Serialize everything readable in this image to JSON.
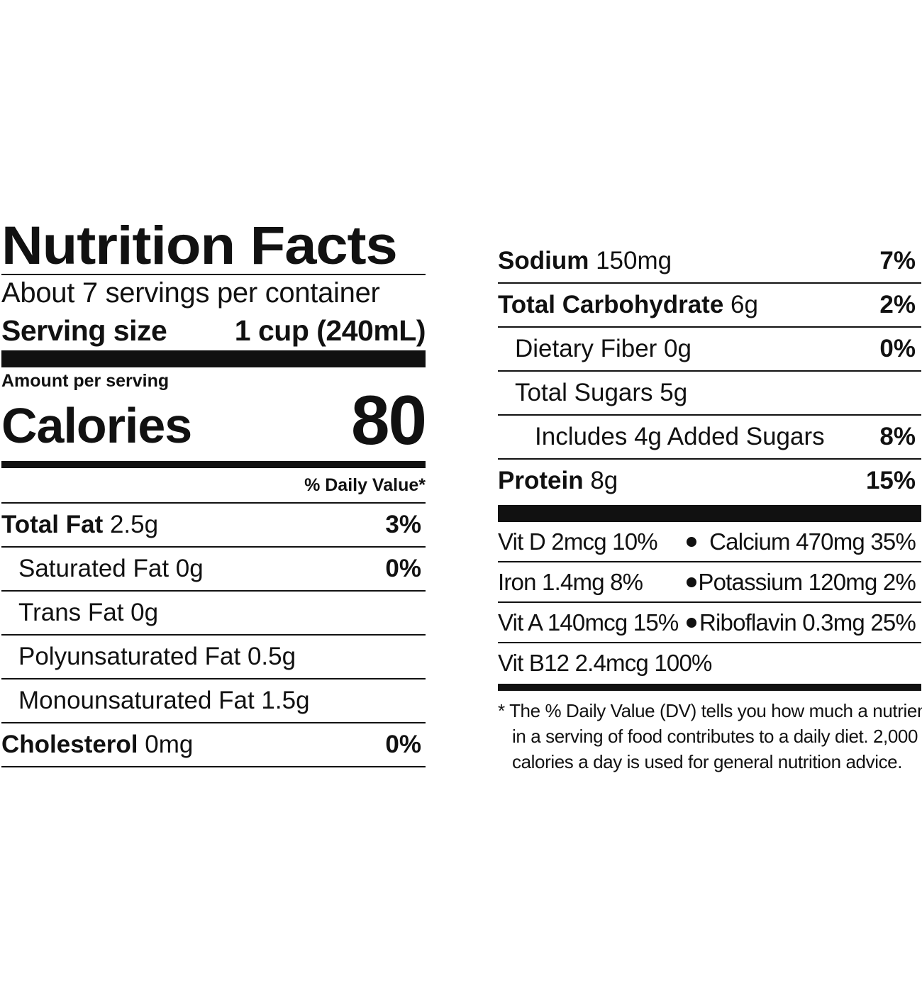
{
  "left": {
    "title": "Nutrition Facts",
    "servings_per_container": "About 7 servings per container",
    "serving_size_label": "Serving size",
    "serving_size_value": "1 cup (240mL)",
    "amount_per_serving": "Amount per serving",
    "calories_label": "Calories",
    "calories_value": "80",
    "daily_value_header": "% Daily Value*",
    "rows": [
      {
        "name": "Total Fat",
        "amount": "2.5g",
        "dv": "3%"
      },
      {
        "name": "Saturated Fat 0g",
        "dv": "0%"
      },
      {
        "name": "Trans Fat 0g"
      },
      {
        "name": "Polyunsaturated Fat 0.5g"
      },
      {
        "name": "Monounsaturated Fat 1.5g"
      },
      {
        "name": "Cholesterol",
        "amount": "0mg",
        "dv": "0%"
      }
    ]
  },
  "right": {
    "rows": [
      {
        "name": "Sodium",
        "amount": "150mg",
        "dv": "7%"
      },
      {
        "name": "Total Carbohydrate",
        "amount": "6g",
        "dv": "2%"
      },
      {
        "name": "Dietary Fiber 0g",
        "dv": "0%"
      },
      {
        "name": "Total Sugars 5g"
      },
      {
        "name": "Includes 4g Added Sugars",
        "dv": "8%"
      },
      {
        "name": "Protein",
        "amount": "8g",
        "dv": "15%"
      }
    ],
    "vitamins": [
      {
        "left": "Vit D 2mcg 10%",
        "right": "Calcium 470mg 35%"
      },
      {
        "left": "Iron 1.4mg 8%",
        "right": "Potassium 120mg 2%"
      },
      {
        "left": "Vit A 140mcg 15%",
        "right": "Riboflavin 0.3mg 25%"
      },
      {
        "left": "Vit B12 2.4mcg 100%"
      }
    ],
    "footnote": [
      "* The % Daily Value (DV) tells you how much a nutrient",
      "in a serving of food contributes to a daily diet. 2,000",
      "calories a day is used for general nutrition advice."
    ]
  }
}
